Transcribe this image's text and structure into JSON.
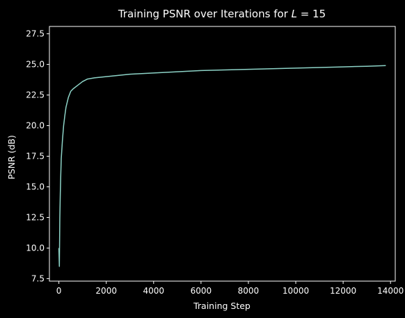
{
  "chart_data": {
    "type": "line",
    "title": "Training PSNR over Iterations for L = 15",
    "title_parts": {
      "prefix": "Training PSNR over Iterations for ",
      "var": "L",
      "suffix": " = 15"
    },
    "xlabel": "Training Step",
    "ylabel": "PSNR (dB)",
    "xlim": [
      -400,
      14200
    ],
    "ylim": [
      7.3,
      28.1
    ],
    "xticks": [
      0,
      2000,
      4000,
      6000,
      8000,
      10000,
      12000,
      14000
    ],
    "xtick_labels": [
      "0",
      "2000",
      "4000",
      "6000",
      "8000",
      "10000",
      "12000",
      "14000"
    ],
    "yticks": [
      7.5,
      10.0,
      12.5,
      15.0,
      17.5,
      20.0,
      22.5,
      25.0,
      27.5
    ],
    "ytick_labels": [
      "7.5",
      "10.0",
      "12.5",
      "15.0",
      "17.5",
      "20.0",
      "22.5",
      "25.0",
      "27.5"
    ],
    "grid": false,
    "colors": {
      "background": "#000000",
      "line": "#8dd3c7",
      "axes": "#ffffff"
    },
    "series": [
      {
        "x": [
          0,
          20,
          40,
          60,
          80,
          100,
          150,
          200,
          250,
          300,
          400,
          500,
          600,
          800,
          1000,
          1200,
          1500,
          2000,
          2500,
          3000,
          3500,
          4000,
          5000,
          6000,
          7000,
          8000,
          9000,
          10000,
          11000,
          12000,
          13000,
          13800
        ],
        "y": [
          10.0,
          8.5,
          12.5,
          14.5,
          16.0,
          17.3,
          18.8,
          20.0,
          20.8,
          21.5,
          22.3,
          22.8,
          23.0,
          23.3,
          23.6,
          23.8,
          23.9,
          24.0,
          24.1,
          24.2,
          24.25,
          24.3,
          24.4,
          24.5,
          24.55,
          24.6,
          24.65,
          24.7,
          24.75,
          24.8,
          24.85,
          24.9
        ]
      }
    ]
  }
}
